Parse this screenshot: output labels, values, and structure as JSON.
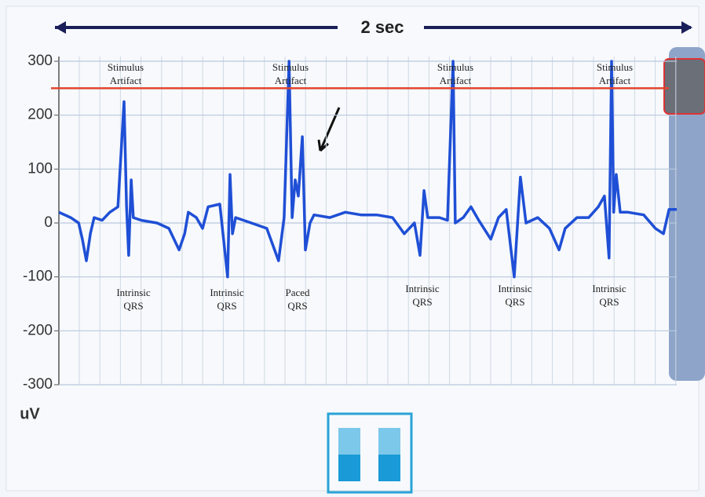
{
  "chart_data": {
    "type": "line",
    "title": "2 sec",
    "ylabel": "uV",
    "xlim": [
      0,
      2
    ],
    "ylim": [
      -300,
      300
    ],
    "yticks": [
      300,
      200,
      100,
      0,
      -100,
      -200,
      -300
    ],
    "reference_line": {
      "value": 250,
      "color": "#e2452f"
    },
    "x": [
      0,
      0.038,
      0.064,
      0.076,
      0.089,
      0.102,
      0.114,
      0.14,
      0.165,
      0.191,
      0.211,
      0.219,
      0.226,
      0.234,
      0.241,
      0.267,
      0.318,
      0.356,
      0.389,
      0.407,
      0.419,
      0.445,
      0.465,
      0.483,
      0.521,
      0.546,
      0.554,
      0.562,
      0.572,
      0.623,
      0.673,
      0.711,
      0.729,
      0.745,
      0.755,
      0.765,
      0.775,
      0.788,
      0.798,
      0.813,
      0.826,
      0.877,
      0.927,
      0.978,
      1.029,
      1.08,
      1.118,
      1.151,
      1.169,
      1.182,
      1.194,
      1.232,
      1.258,
      1.276,
      1.283,
      1.309,
      1.334,
      1.359,
      1.398,
      1.423,
      1.448,
      1.474,
      1.494,
      1.512,
      1.55,
      1.588,
      1.619,
      1.639,
      1.677,
      1.715,
      1.746,
      1.766,
      1.781,
      1.789,
      1.796,
      1.804,
      1.817,
      1.842,
      1.893,
      1.931,
      1.957,
      1.975,
      2.0
    ],
    "series": [
      {
        "color": "#1f4fd6",
        "values": [
          20,
          10,
          0,
          -30,
          -70,
          -20,
          10,
          5,
          20,
          30,
          225,
          30,
          -60,
          80,
          10,
          5,
          0,
          -10,
          -50,
          -20,
          20,
          10,
          -10,
          30,
          35,
          -100,
          90,
          -20,
          10,
          0,
          -10,
          -70,
          10,
          300,
          10,
          80,
          50,
          160,
          -50,
          0,
          15,
          10,
          20,
          15,
          15,
          10,
          -20,
          0,
          -60,
          60,
          10,
          10,
          5,
          300,
          0,
          10,
          30,
          5,
          -30,
          10,
          25,
          -100,
          85,
          0,
          10,
          -10,
          -50,
          -10,
          10,
          10,
          30,
          50,
          -65,
          300,
          20,
          90,
          20,
          20,
          15,
          -10,
          -20,
          25,
          25
        ]
      }
    ],
    "annotations": [
      {
        "lines": [
          "Stimulus",
          "Artifact"
        ]
      },
      {
        "lines": [
          "Stimulus",
          "Artifact"
        ]
      },
      {
        "lines": [
          "Stimulus",
          "Artifact"
        ]
      },
      {
        "lines": [
          "Stimulus",
          "Artifact"
        ]
      },
      {
        "lines": [
          "Intrinsic",
          "QRS"
        ]
      },
      {
        "lines": [
          "Intrinsic",
          "QRS"
        ]
      },
      {
        "lines": [
          "Paced",
          "QRS"
        ]
      },
      {
        "lines": [
          "Intrinsic",
          "QRS"
        ]
      },
      {
        "lines": [
          "Intrinsic",
          "QRS"
        ]
      },
      {
        "lines": [
          "Intrinsic",
          "QRS"
        ]
      }
    ]
  }
}
